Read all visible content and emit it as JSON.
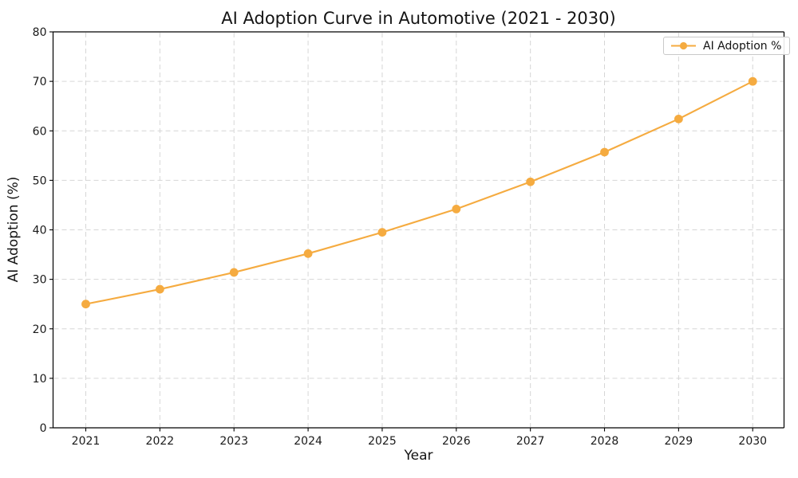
{
  "chart_data": {
    "type": "line",
    "title": "AI Adoption Curve in Automotive (2021 - 2030)",
    "xlabel": "Year",
    "ylabel": "AI Adoption (%)",
    "x": [
      2021,
      2022,
      2023,
      2024,
      2025,
      2026,
      2027,
      2028,
      2029,
      2030
    ],
    "series": [
      {
        "name": "AI Adoption %",
        "values": [
          25.0,
          28.0,
          31.4,
          35.2,
          39.5,
          44.2,
          49.7,
          55.7,
          62.4,
          70.0
        ],
        "color": "#F5AB40",
        "marker": "circle"
      }
    ],
    "ylim": [
      0,
      80
    ],
    "yticks": [
      0,
      10,
      20,
      30,
      40,
      50,
      60,
      70,
      80
    ],
    "xticks": [
      "2021",
      "2022",
      "2023",
      "2024",
      "2025",
      "2026",
      "2027",
      "2028",
      "2029",
      "2030"
    ],
    "grid": "dashed",
    "grid_color": "#d6d6d6",
    "spine_color": "#000000",
    "tick_text_color": "#1a1a1a",
    "legend": {
      "position": "upper right",
      "entries": [
        "AI Adoption %"
      ]
    },
    "background": "#ffffff"
  }
}
